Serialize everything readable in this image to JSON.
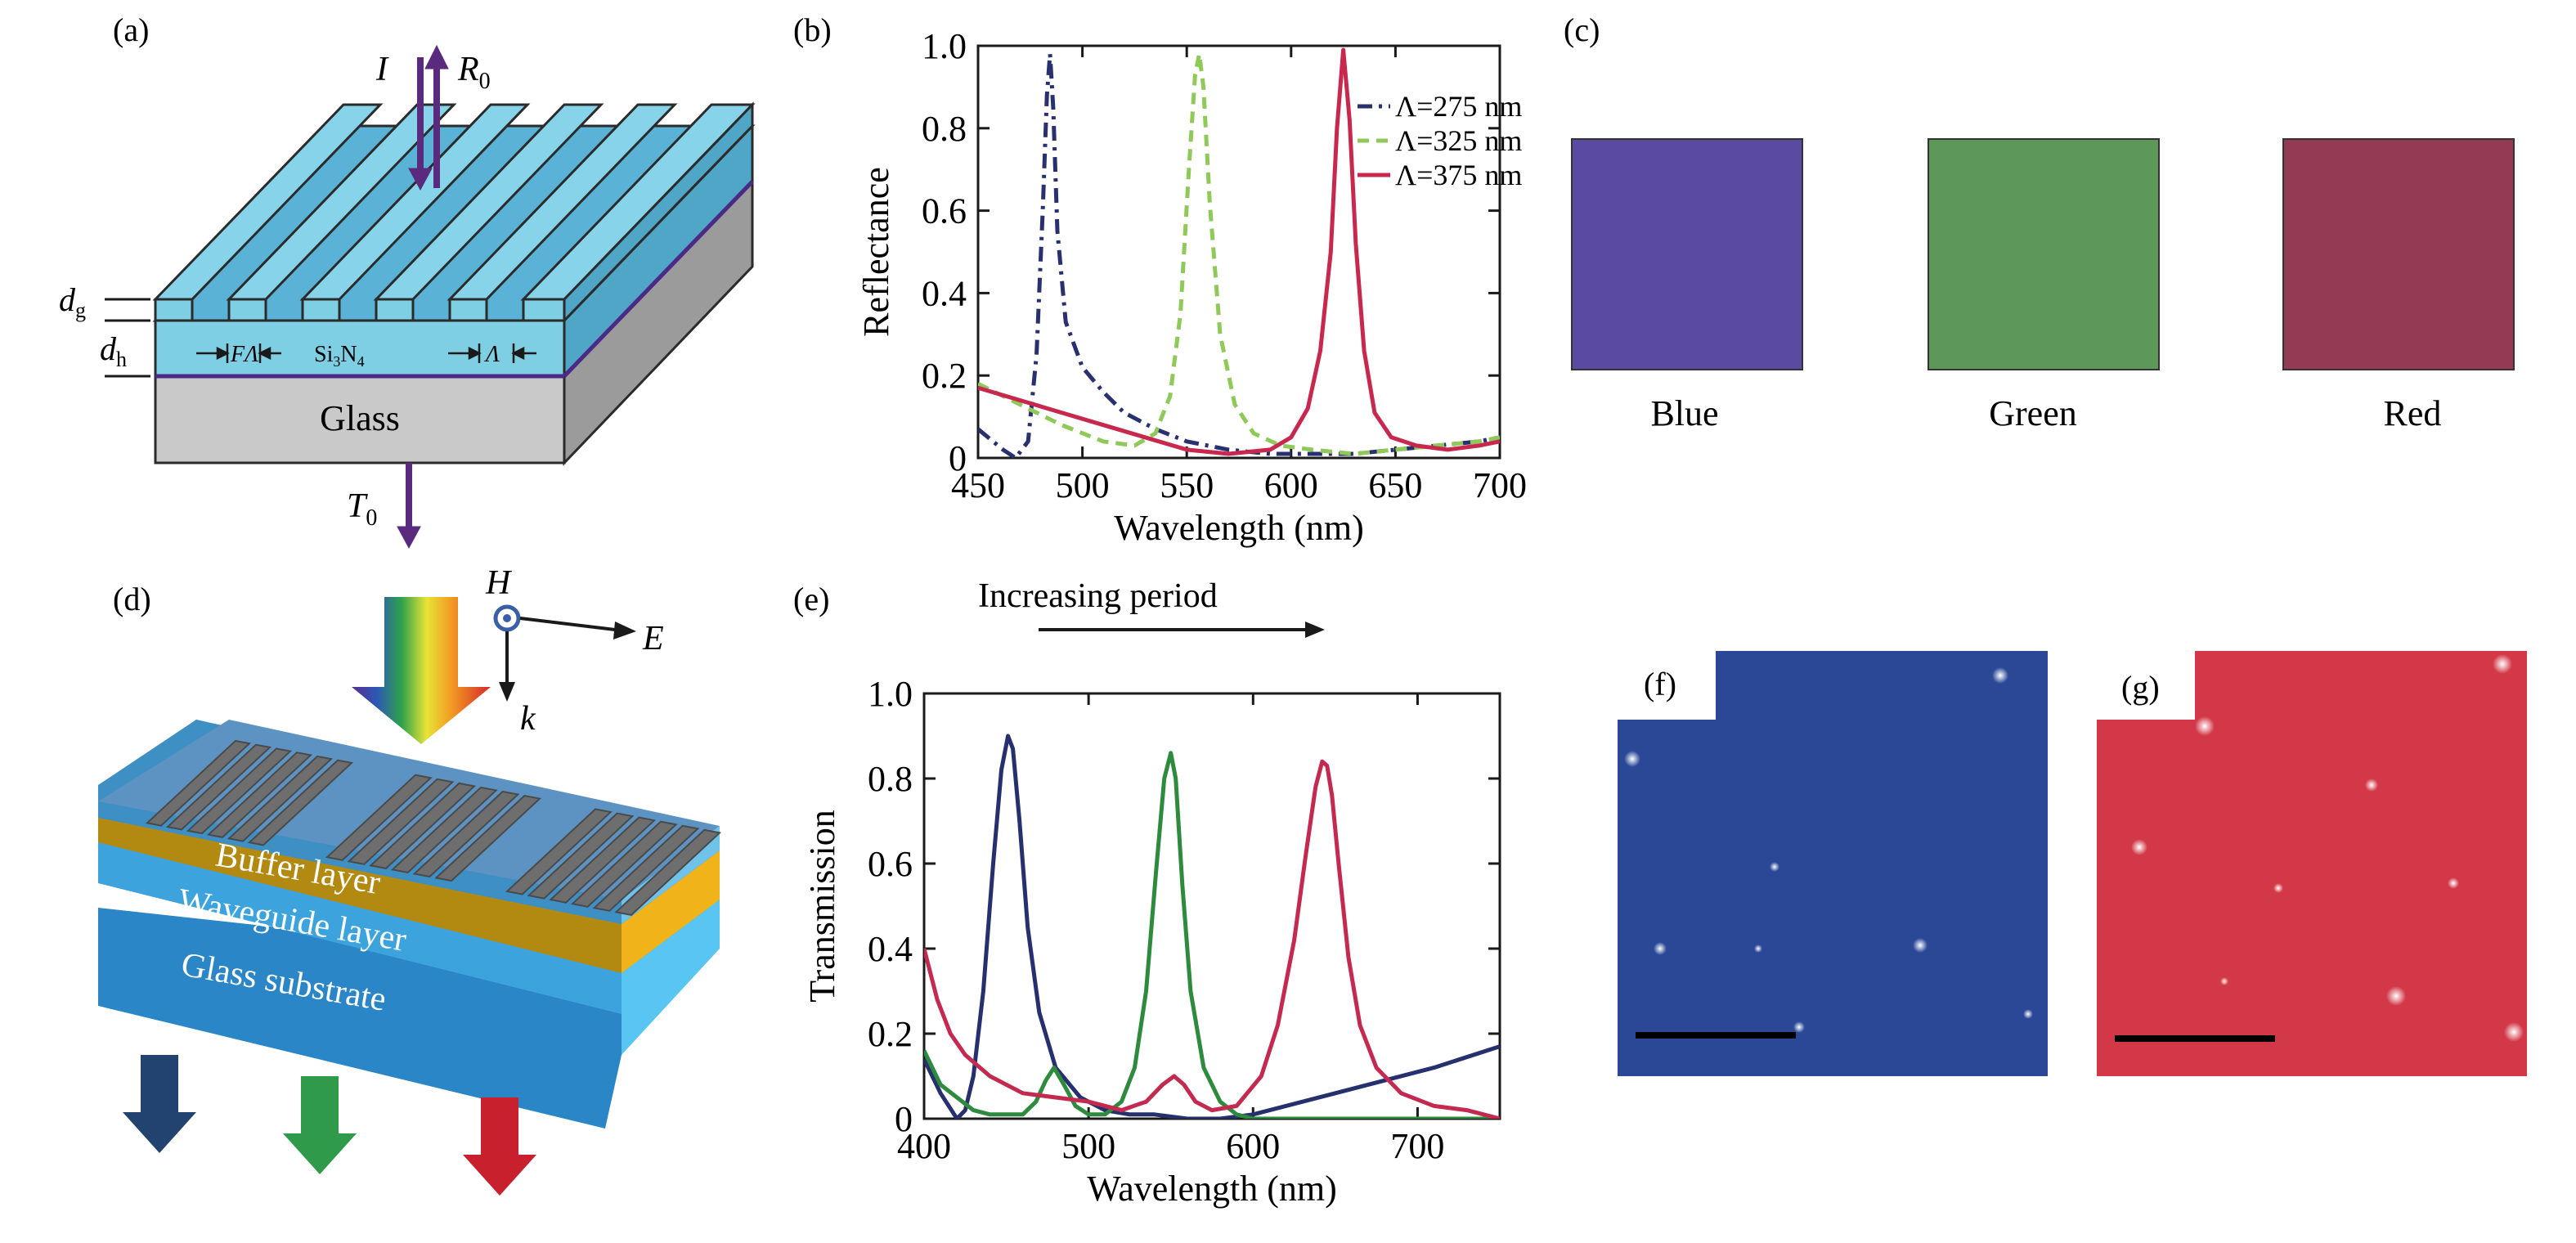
{
  "panels": {
    "a": {
      "letter": "(a)",
      "incident_label": "I",
      "reflected_label": "R",
      "reflected_sub": "0",
      "transmitted_label": "T",
      "transmitted_sub": "0",
      "dg_label": "d",
      "dg_sub": "g",
      "dh_label": "d",
      "dh_sub": "h",
      "fill_label": "FΛ",
      "material_label": "Si",
      "material_sub1": "3",
      "material_mid": "N",
      "material_sub2": "4",
      "period_label": "Λ",
      "substrate_label": "Glass"
    },
    "b": {
      "letter": "(b)"
    },
    "c": {
      "letter": "(c)",
      "swatches": [
        {
          "label": "Blue",
          "color": "#5a4aa2"
        },
        {
          "label": "Green",
          "color": "#5e975a"
        },
        {
          "label": "Red",
          "color": "#943a54"
        }
      ]
    },
    "d": {
      "letter": "(d)",
      "h_label": "H",
      "e_label": "E",
      "k_label": "k",
      "buffer_label": "Buffer layer",
      "waveguide_label": "Waveguide layer",
      "substrate_label": "Glass substrate",
      "out_arrow_colors": [
        "#22436f",
        "#2f9a4a",
        "#c9202e"
      ]
    },
    "e": {
      "letter": "(e)",
      "period_caption": "Increasing period"
    },
    "f": {
      "letter": "(f)",
      "color": "#2a4896"
    },
    "g": {
      "letter": "(g)",
      "color": "#d33848"
    }
  },
  "chart_data": [
    {
      "panel": "b",
      "type": "line",
      "title": "",
      "xlabel": "Wavelength (nm)",
      "ylabel": "Reflectance",
      "xlim": [
        450,
        700
      ],
      "ylim": [
        0,
        1.0
      ],
      "xticks": [
        450,
        500,
        550,
        600,
        650,
        700
      ],
      "yticks": [
        0,
        0.2,
        0.4,
        0.6,
        0.8,
        1.0
      ],
      "ytick_labels": [
        "0",
        "0.2",
        "0.4",
        "0.6",
        "0.8",
        "1.0"
      ],
      "legend_position": "top-right",
      "series": [
        {
          "name": "Λ=275 nm",
          "color": "#28306e",
          "dash": "dashdot",
          "x": [
            450,
            462,
            468,
            474,
            478,
            481,
            483,
            484.5,
            486,
            488,
            492,
            500,
            510,
            520,
            535,
            550,
            570,
            590,
            610,
            630,
            650,
            670,
            690,
            700
          ],
          "y": [
            0.07,
            0.02,
            0.0,
            0.04,
            0.25,
            0.6,
            0.88,
            0.98,
            0.85,
            0.55,
            0.33,
            0.22,
            0.16,
            0.11,
            0.07,
            0.04,
            0.02,
            0.01,
            0.01,
            0.01,
            0.02,
            0.03,
            0.04,
            0.05
          ]
        },
        {
          "name": "Λ=325 nm",
          "color": "#8ec95a",
          "dash": "dashed",
          "x": [
            450,
            470,
            490,
            510,
            525,
            535,
            542,
            547,
            551,
            554,
            556,
            558,
            561,
            566,
            573,
            582,
            595,
            610,
            630,
            650,
            670,
            690,
            700
          ],
          "y": [
            0.18,
            0.13,
            0.08,
            0.04,
            0.03,
            0.06,
            0.15,
            0.35,
            0.7,
            0.93,
            0.98,
            0.9,
            0.62,
            0.3,
            0.13,
            0.06,
            0.03,
            0.02,
            0.01,
            0.02,
            0.03,
            0.04,
            0.05
          ]
        },
        {
          "name": "Λ=375 nm",
          "color": "#c8284e",
          "dash": "solid",
          "x": [
            450,
            470,
            490,
            510,
            530,
            550,
            570,
            590,
            600,
            608,
            614,
            619,
            622,
            625,
            628,
            631,
            635,
            640,
            648,
            660,
            675,
            690,
            700
          ],
          "y": [
            0.17,
            0.14,
            0.11,
            0.08,
            0.05,
            0.02,
            0.01,
            0.02,
            0.05,
            0.12,
            0.26,
            0.5,
            0.8,
            0.99,
            0.82,
            0.52,
            0.26,
            0.11,
            0.05,
            0.03,
            0.02,
            0.03,
            0.04
          ]
        }
      ]
    },
    {
      "panel": "e",
      "type": "line",
      "title": "",
      "xlabel": "Wavelength (nm)",
      "ylabel": "Transmission",
      "xlim": [
        400,
        750
      ],
      "ylim": [
        0,
        1.0
      ],
      "xticks": [
        400,
        500,
        600,
        700
      ],
      "yticks": [
        0,
        0.2,
        0.4,
        0.6,
        0.8,
        1.0
      ],
      "ytick_labels": [
        "0",
        "0.2",
        "0.4",
        "0.6",
        "0.8",
        "1.0"
      ],
      "series": [
        {
          "name": "",
          "color": "#27306e",
          "dash": "solid",
          "x": [
            400,
            410,
            420,
            425,
            430,
            436,
            442,
            447,
            451,
            454,
            458,
            463,
            470,
            480,
            495,
            510,
            525,
            540,
            560,
            580,
            600,
            620,
            650,
            680,
            710,
            750
          ],
          "y": [
            0.14,
            0.06,
            0.0,
            0.02,
            0.1,
            0.3,
            0.6,
            0.82,
            0.9,
            0.87,
            0.7,
            0.45,
            0.25,
            0.12,
            0.05,
            0.02,
            0.01,
            0.01,
            0.0,
            0.0,
            0.01,
            0.03,
            0.06,
            0.09,
            0.12,
            0.17
          ]
        },
        {
          "name": "",
          "color": "#2e8a3c",
          "dash": "solid",
          "x": [
            400,
            410,
            420,
            430,
            440,
            450,
            460,
            468,
            474,
            479,
            485,
            492,
            500,
            510,
            520,
            528,
            535,
            541,
            546,
            550,
            553,
            557,
            562,
            570,
            580,
            590,
            600,
            620,
            650,
            700,
            750
          ],
          "y": [
            0.16,
            0.08,
            0.05,
            0.02,
            0.01,
            0.01,
            0.01,
            0.04,
            0.09,
            0.12,
            0.08,
            0.03,
            0.01,
            0.01,
            0.04,
            0.12,
            0.3,
            0.58,
            0.8,
            0.86,
            0.8,
            0.55,
            0.3,
            0.12,
            0.04,
            0.01,
            0.0,
            0.0,
            0.0,
            0.0,
            0.0
          ]
        },
        {
          "name": "",
          "color": "#c42a50",
          "dash": "solid",
          "x": [
            400,
            408,
            416,
            425,
            440,
            460,
            480,
            500,
            520,
            535,
            545,
            552,
            558,
            565,
            575,
            590,
            605,
            615,
            625,
            632,
            638,
            642,
            645,
            648,
            652,
            658,
            665,
            675,
            690,
            710,
            730,
            750
          ],
          "y": [
            0.4,
            0.28,
            0.2,
            0.15,
            0.1,
            0.06,
            0.05,
            0.04,
            0.02,
            0.04,
            0.08,
            0.1,
            0.08,
            0.04,
            0.02,
            0.03,
            0.1,
            0.22,
            0.42,
            0.62,
            0.78,
            0.84,
            0.83,
            0.76,
            0.6,
            0.38,
            0.22,
            0.12,
            0.06,
            0.03,
            0.02,
            0.0
          ]
        }
      ]
    }
  ]
}
